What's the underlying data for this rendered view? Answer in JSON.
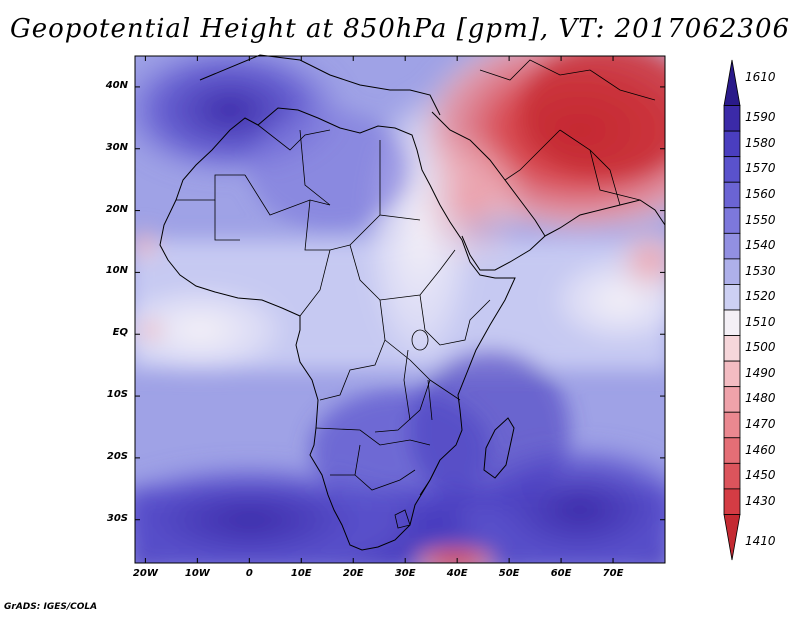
{
  "title": "Geopotential Height at 850hPa [gpm], VT: 2017062306",
  "credit": "GrADS: IGES/COLA",
  "map": {
    "projection": "lat-lon",
    "lon_range": [
      -22,
      80
    ],
    "lat_range": [
      -37,
      45
    ],
    "lat_labels": [
      {
        "text": "40N",
        "lat": 40
      },
      {
        "text": "30N",
        "lat": 30
      },
      {
        "text": "20N",
        "lat": 20
      },
      {
        "text": "10N",
        "lat": 10
      },
      {
        "text": "EQ",
        "lat": 0
      },
      {
        "text": "10S",
        "lat": -10
      },
      {
        "text": "20S",
        "lat": -20
      },
      {
        "text": "30S",
        "lat": -30
      }
    ],
    "lon_labels": [
      {
        "text": "20W",
        "lon": -20
      },
      {
        "text": "10W",
        "lon": -10
      },
      {
        "text": "0",
        "lon": 0
      },
      {
        "text": "10E",
        "lon": 10
      },
      {
        "text": "20E",
        "lon": 20
      },
      {
        "text": "30E",
        "lon": 30
      },
      {
        "text": "40E",
        "lon": 40
      },
      {
        "text": "50E",
        "lon": 50
      },
      {
        "text": "60E",
        "lon": 60
      },
      {
        "text": "70E",
        "lon": 70
      }
    ]
  },
  "chart_data": {
    "type": "heatmap",
    "title": "Geopotential Height at 850hPa [gpm], VT: 2017062306",
    "variable": "Geopotential Height",
    "level": "850hPa",
    "units": "gpm",
    "valid_time": "2017062306",
    "colorbar": {
      "labels": [
        "1610",
        "1590",
        "1580",
        "1570",
        "1560",
        "1550",
        "1540",
        "1530",
        "1520",
        "1510",
        "1500",
        "1490",
        "1480",
        "1470",
        "1460",
        "1450",
        "1430",
        "1410"
      ],
      "colors": [
        "#2a1a8a",
        "#3b2aa8",
        "#4a3ebf",
        "#5a52cc",
        "#6b64d4",
        "#7d78dc",
        "#9290e2",
        "#aeb0ea",
        "#cdd0f3",
        "#f4f0f6",
        "#f6d6da",
        "#f3bcc2",
        "#efa2aa",
        "#ea8890",
        "#e46e76",
        "#dc545c",
        "#d43c44",
        "#c42a32"
      ]
    },
    "fields": {
      "high_max_region": "Northwest Africa and South Atlantic / Southern Ocean (about 1590-1610 gpm)",
      "low_min_region": "Arabia, Iran and Pakistan (about 1410-1450 gpm)"
    }
  }
}
